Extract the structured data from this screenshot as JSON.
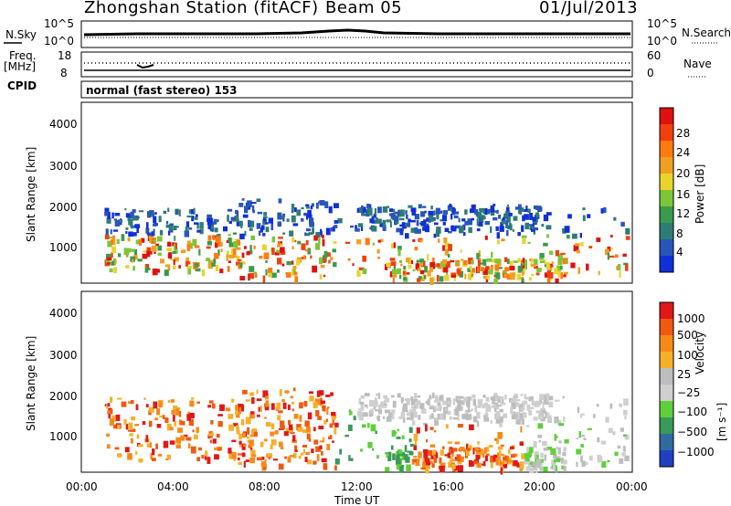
{
  "header": {
    "station": "Zhongshan Station (fitACF)",
    "beam": "Beam 05",
    "date": "01/Jul/2013"
  },
  "top_panels": {
    "nsky_label": "N.Sky",
    "nsky_ticks": [
      "10^5",
      "10^0"
    ],
    "nsearch_label": "N.Search",
    "nsearch_ticks": [
      "10^5",
      "10^0"
    ],
    "freq_label_1": "Freq.",
    "freq_label_2": "[MHz]",
    "freq_ticks": [
      "18",
      "8"
    ],
    "nave_label": "Nave",
    "nave_ticks": [
      "60",
      "0"
    ],
    "cpid_label": "CPID",
    "cpid_value": "normal (fast stereo) 153"
  },
  "colors": {
    "power_scale": [
      "#1030d8",
      "#2a55b8",
      "#2f7c74",
      "#3a9a4e",
      "#7cc63a",
      "#e8d42a",
      "#f0a020",
      "#ff7a10",
      "#f04010",
      "#e01010"
    ],
    "velocity_scale": [
      "#e01818",
      "#f05a10",
      "#f58a1a",
      "#f5b02a",
      "#bdbdbd",
      "#cfcfcf",
      "#5fcf3a",
      "#3a9a5a",
      "#2f6aa0",
      "#2040c0"
    ]
  },
  "chart_data": [
    {
      "type": "heatmap",
      "name": "power",
      "ylabel": "Slant Range [km]",
      "xlabel": "",
      "x_ticks": [
        "00:00",
        "04:00",
        "08:00",
        "12:00",
        "16:00",
        "20:00",
        "00:00"
      ],
      "y_ticks": [
        1000,
        2000,
        3000,
        4000
      ],
      "ylim": [
        180,
        4600
      ],
      "xlim_hours": [
        0,
        24
      ],
      "colorbar_label": "Power [dB]",
      "colorbar_ticks": [
        "4",
        "8",
        "12",
        "16",
        "20",
        "24",
        "28"
      ],
      "colorbar_range": [
        0,
        30
      ]
    },
    {
      "type": "heatmap",
      "name": "velocity",
      "ylabel": "Slant Range [km]",
      "xlabel": "Time UT",
      "x_ticks": [
        "00:00",
        "04:00",
        "08:00",
        "12:00",
        "16:00",
        "20:00",
        "00:00"
      ],
      "y_ticks": [
        1000,
        2000,
        3000,
        4000
      ],
      "ylim": [
        180,
        4600
      ],
      "xlim_hours": [
        0,
        24
      ],
      "colorbar_label_main": "Velocity",
      "colorbar_label_unit": "[m s⁻¹]",
      "colorbar_ticks": [
        "1000",
        "500",
        "100",
        "25",
        "−25",
        "−100",
        "−500",
        "−1000"
      ]
    }
  ]
}
